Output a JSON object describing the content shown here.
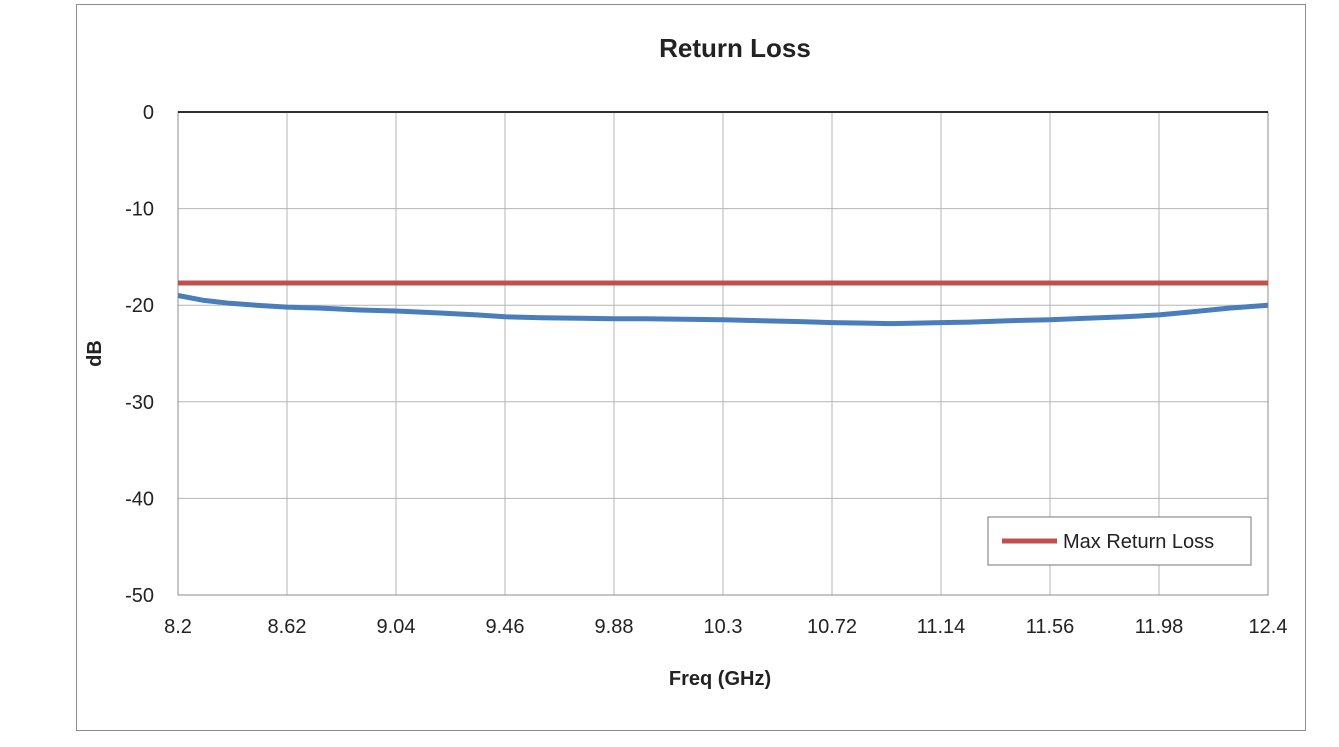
{
  "chart_data": {
    "type": "line",
    "title": "Return Loss",
    "xlabel": "Freq (GHz)",
    "ylabel": "dB",
    "x_ticks": [
      "8.2",
      "8.62",
      "9.04",
      "9.46",
      "9.88",
      "10.3",
      "10.72",
      "11.14",
      "11.56",
      "11.98",
      "12.4"
    ],
    "xlim": [
      8.2,
      12.4
    ],
    "ylim": [
      -50,
      0
    ],
    "y_ticks": [
      0,
      -10,
      -20,
      -30,
      -40,
      -50
    ],
    "grid": true,
    "legend_position": "bottom-right",
    "series": [
      {
        "name": "",
        "color": "#4a7ebb",
        "x": [
          8.2,
          8.3,
          8.4,
          8.5,
          8.62,
          8.75,
          8.9,
          9.04,
          9.2,
          9.35,
          9.46,
          9.6,
          9.75,
          9.88,
          10.0,
          10.15,
          10.3,
          10.45,
          10.6,
          10.72,
          10.85,
          10.95,
          11.05,
          11.14,
          11.25,
          11.4,
          11.56,
          11.7,
          11.85,
          11.98,
          12.1,
          12.25,
          12.4
        ],
        "values": [
          -19.0,
          -19.5,
          -19.8,
          -20.0,
          -20.2,
          -20.3,
          -20.5,
          -20.6,
          -20.8,
          -21.0,
          -21.2,
          -21.3,
          -21.35,
          -21.4,
          -21.4,
          -21.45,
          -21.5,
          -21.6,
          -21.7,
          -21.8,
          -21.85,
          -21.9,
          -21.85,
          -21.8,
          -21.75,
          -21.6,
          -21.5,
          -21.35,
          -21.2,
          -21.0,
          -20.7,
          -20.3,
          -20.0
        ]
      },
      {
        "name": "Max Return Loss",
        "color": "#c0504d",
        "x": [
          8.2,
          12.4
        ],
        "values": [
          -17.7,
          -17.7
        ]
      }
    ]
  }
}
